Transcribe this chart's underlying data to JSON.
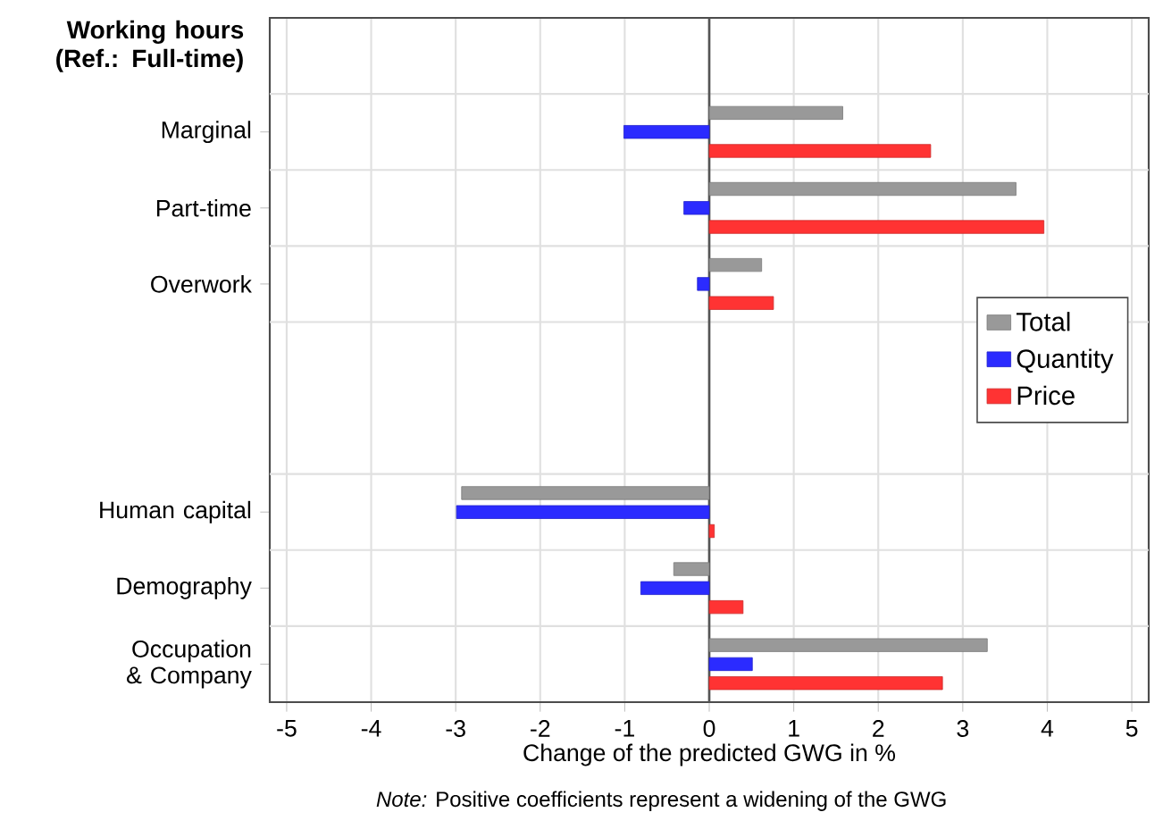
{
  "chart_data": {
    "type": "bar",
    "orientation": "horizontal",
    "categories": [
      null,
      "Marginal",
      "Part-time",
      "Overwork",
      null,
      null,
      "Human capital",
      "Demography",
      "Occupation & Company"
    ],
    "series": [
      {
        "name": "Total",
        "color": "#999999",
        "values": [
          null,
          1.58,
          3.63,
          0.62,
          null,
          null,
          -2.93,
          -0.42,
          3.29
        ]
      },
      {
        "name": "Quantity",
        "color": "#2b2bff",
        "values": [
          null,
          -1.01,
          -0.3,
          -0.14,
          null,
          null,
          -2.99,
          -0.81,
          0.51
        ]
      },
      {
        "name": "Price",
        "color": "#ff3333",
        "values": [
          null,
          2.62,
          3.96,
          0.76,
          null,
          null,
          0.06,
          0.4,
          2.76
        ]
      }
    ],
    "xlim": [
      -5.2,
      5.2
    ],
    "xticks": [
      -5,
      -4,
      -3,
      -2,
      -1,
      0,
      1,
      2,
      3,
      4,
      5
    ],
    "xlabel": "Change of the predicted GWG in %",
    "ref_lines": [
      {
        "axis": "x",
        "value": 0,
        "color": "#555555"
      }
    ],
    "grid": true,
    "legend": "right",
    "annotations": [
      "Working hours (Ref.: Full-time)",
      "*Note:* Positive coefficients represent a widening of the GWG"
    ]
  }
}
